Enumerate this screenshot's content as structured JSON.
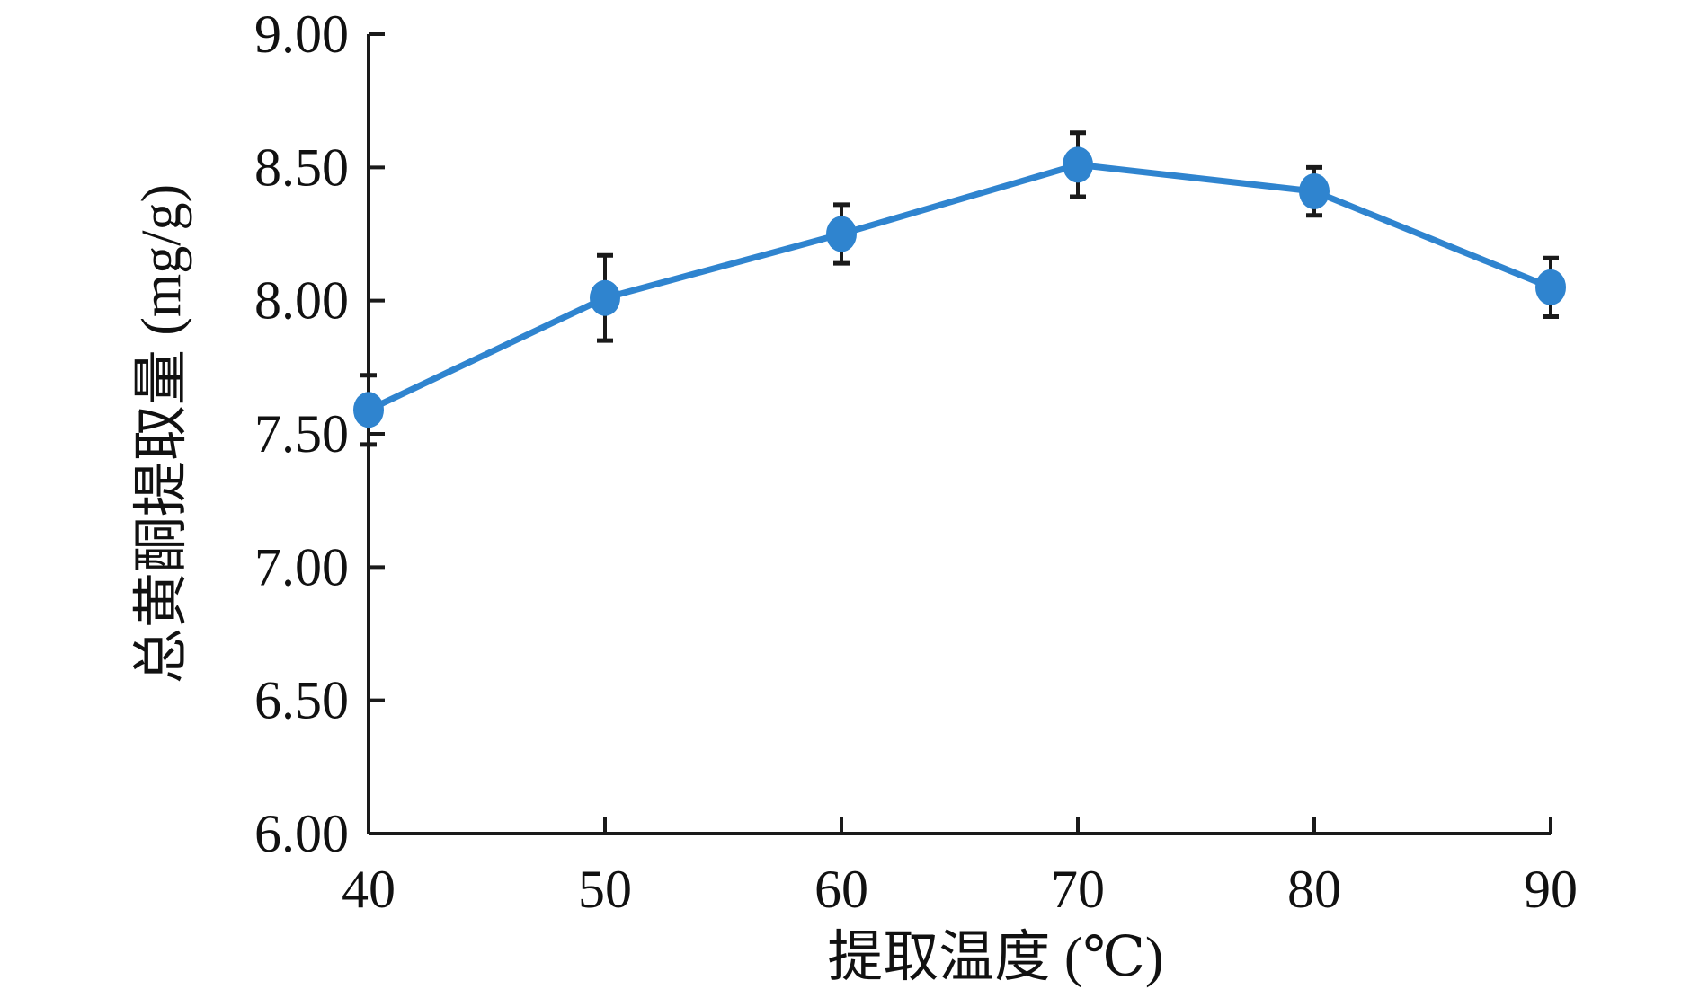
{
  "chart_data": {
    "type": "line",
    "xlabel": "提取温度 (℃)",
    "ylabel": "总黄酮提取量 (mg/g)",
    "x": [
      40,
      50,
      60,
      70,
      80,
      90
    ],
    "x_tick_labels": [
      "40",
      "50",
      "60",
      "70",
      "80",
      "90"
    ],
    "y_tick_values": [
      6.0,
      6.5,
      7.0,
      7.5,
      8.0,
      8.5,
      9.0
    ],
    "y_tick_labels": [
      "6.00",
      "6.50",
      "7.00",
      "7.50",
      "8.00",
      "8.50",
      "9.00"
    ],
    "ylim": [
      6.0,
      9.0
    ],
    "xlim": [
      40,
      90
    ],
    "series": [
      {
        "values": [
          7.59,
          8.01,
          8.25,
          8.51,
          8.41,
          8.05
        ],
        "error": [
          0.13,
          0.16,
          0.11,
          0.12,
          0.09,
          0.11
        ],
        "color": "#2f84cf"
      }
    ],
    "error_bar_color": "#1a1a1a",
    "axis_color": "#1a1a1a",
    "grid": false
  }
}
